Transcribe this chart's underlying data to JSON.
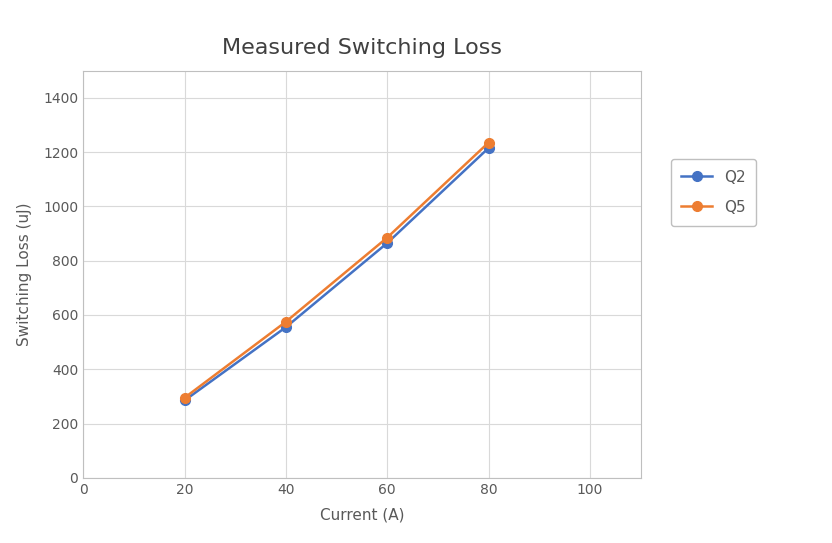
{
  "title": "Measured Switching Loss",
  "xlabel": "Current (A)",
  "ylabel": "Switching Loss (uJ)",
  "xlim": [
    0,
    110
  ],
  "ylim": [
    0,
    1500
  ],
  "xticks": [
    0,
    20,
    40,
    60,
    80,
    100
  ],
  "yticks": [
    0,
    200,
    400,
    600,
    800,
    1000,
    1200,
    1400
  ],
  "Q2": {
    "x": [
      20,
      40,
      60,
      80
    ],
    "y": [
      285,
      555,
      865,
      1215
    ],
    "color": "#4472C4",
    "label": "Q2",
    "linewidth": 1.8,
    "markersize": 7
  },
  "Q5": {
    "x": [
      20,
      40,
      60,
      80
    ],
    "y": [
      295,
      575,
      885,
      1235
    ],
    "color": "#ED7D31",
    "label": "Q5",
    "linewidth": 1.8,
    "markersize": 7
  },
  "title_fontsize": 16,
  "axis_label_fontsize": 11,
  "tick_fontsize": 10,
  "legend_fontsize": 11,
  "background_color": "#FFFFFF",
  "grid_color": "#D9D9D9",
  "title_color": "#404040",
  "tick_color": "#595959",
  "spine_color": "#BFBFBF"
}
